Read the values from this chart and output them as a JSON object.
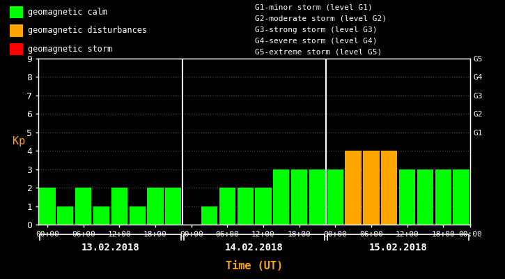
{
  "background_color": "#000000",
  "plot_bg_color": "#000000",
  "kp_values": [
    [
      2,
      1,
      2,
      1,
      2,
      1,
      2,
      2
    ],
    [
      0,
      1,
      2,
      2,
      2,
      3,
      3,
      3
    ],
    [
      3,
      4,
      4,
      4,
      3,
      3,
      3,
      3
    ]
  ],
  "bar_colors": [
    [
      "#00ff00",
      "#00ff00",
      "#00ff00",
      "#00ff00",
      "#00ff00",
      "#00ff00",
      "#00ff00",
      "#00ff00"
    ],
    [
      "#00ff00",
      "#00ff00",
      "#00ff00",
      "#00ff00",
      "#00ff00",
      "#00ff00",
      "#00ff00",
      "#00ff00"
    ],
    [
      "#00ff00",
      "#ffa500",
      "#ffa500",
      "#ffa500",
      "#00ff00",
      "#00ff00",
      "#00ff00",
      "#00ff00"
    ]
  ],
  "dates": [
    "13.02.2018",
    "14.02.2018",
    "15.02.2018"
  ],
  "ylim": [
    0,
    9
  ],
  "yticks": [
    0,
    1,
    2,
    3,
    4,
    5,
    6,
    7,
    8,
    9
  ],
  "ylabel": "Kp",
  "ylabel_color": "#ffa500",
  "xlabel": "Time (UT)",
  "xlabel_color": "#ffa500",
  "grid_color": "#aaaaaa",
  "tick_color": "#ffffff",
  "axis_color": "#ffffff",
  "right_labels": [
    "G5",
    "G4",
    "G3",
    "G2",
    "G1"
  ],
  "right_label_levels": [
    9,
    8,
    7,
    6,
    5
  ],
  "right_label_color": "#ffffff",
  "legend_items": [
    {
      "label": "geomagnetic calm",
      "color": "#00ff00"
    },
    {
      "label": "geomagnetic disturbances",
      "color": "#ffa500"
    },
    {
      "label": "geomagnetic storm",
      "color": "#ff0000"
    }
  ],
  "g_legend": [
    "G1-minor storm (level G1)",
    "G2-moderate storm (level G2)",
    "G3-strong storm (level G3)",
    "G4-severe storm (level G4)",
    "G5-extreme storm (level G5)"
  ],
  "font_family": "monospace",
  "bar_width": 0.9
}
